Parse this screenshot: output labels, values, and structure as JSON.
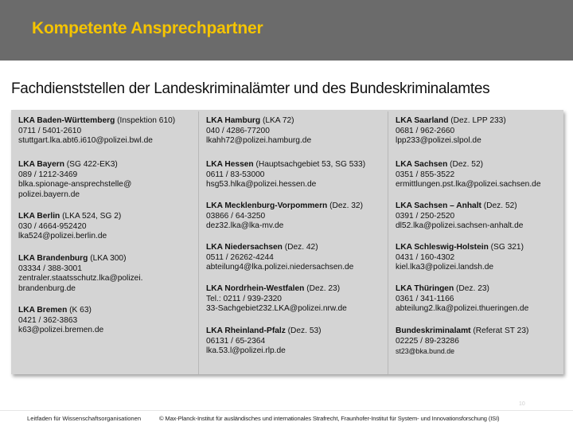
{
  "header": {
    "title": "Kompetente Ansprechpartner"
  },
  "subtitle": "Fachdienststellen der Landeskriminalämter und des Bundeskriminalamtes",
  "columns": [
    {
      "entries": [
        {
          "name": "LKA Baden-Württemberg",
          "extra": " (Inspektion 610)",
          "lines": [
            "0711 / 5401-2610",
            "stuttgart.lka.abt6.i610@polizei.bwl.de"
          ]
        },
        {
          "name": "LKA Bayern",
          "extra": " (SG 422-EK3)",
          "lines": [
            "089 / 1212-3469",
            "blka.spionage-ansprechstelle@",
            "polizei.bayern.de"
          ]
        },
        {
          "name": "LKA Berlin",
          "extra": " (LKA 524, SG 2)",
          "lines": [
            "030 / 4664-952420",
            "lka524@polizei.berlin.de"
          ]
        },
        {
          "name": "LKA Brandenburg",
          "extra": " (LKA 300)",
          "lines": [
            "03334 / 388-3001",
            "zentraler.staatsschutz.lka@polizei.",
            "brandenburg.de"
          ]
        },
        {
          "name": "LKA Bremen",
          "extra": " (K 63)",
          "lines": [
            "0421 / 362-3863",
            "k63@polizei.bremen.de"
          ]
        }
      ]
    },
    {
      "entries": [
        {
          "name": "LKA Hamburg",
          "extra": " (LKA 72)",
          "lines": [
            "040 / 4286-77200",
            "lkahh72@polizei.hamburg.de"
          ]
        },
        {
          "name": "LKA Hessen",
          "extra": " (Hauptsachgebiet 53, SG 533)",
          "lines": [
            "0611 / 83-53000",
            "hsg53.hlka@polizei.hessen.de"
          ]
        },
        {
          "name": "LKA Mecklenburg-Vorpommern",
          "extra": " (Dez. 32)",
          "lines": [
            "03866 / 64-3250",
            "dez32.lka@lka-mv.de"
          ]
        },
        {
          "name": "LKA Niedersachsen",
          "extra": " (Dez. 42)",
          "lines": [
            "0511 / 26262-4244",
            "abteilung4@lka.polizei.niedersachsen.de"
          ]
        },
        {
          "name": "LKA Nordrhein-Westfalen",
          "extra": " (Dez. 23)",
          "lines": [
            "Tel.: 0211 / 939-2320",
            "33-Sachgebiet232.LKA@polizei.nrw.de"
          ]
        },
        {
          "name": "LKA Rheinland-Pfalz",
          "extra": " (Dez. 53)",
          "lines": [
            "06131 / 65-2364",
            "lka.53.l@polizei.rlp.de"
          ]
        }
      ]
    },
    {
      "entries": [
        {
          "name": "LKA Saarland",
          "extra": " (Dez. LPP 233)",
          "lines": [
            "0681 / 962-2660",
            "lpp233@polizei.slpol.de"
          ]
        },
        {
          "name": "LKA Sachsen",
          "extra": " (Dez. 52)",
          "lines": [
            "0351 / 855-3522",
            "ermittlungen.pst.lka@polizei.sachsen.de"
          ]
        },
        {
          "name": "LKA Sachsen – Anhalt",
          "extra": " (Dez. 52)",
          "lines": [
            "0391 / 250-2520",
            "dl52.lka@polizei.sachsen-anhalt.de"
          ]
        },
        {
          "name": "LKA Schleswig-Holstein",
          "extra": " (SG 321)",
          "lines": [
            "0431 / 160-4302",
            "kiel.lka3@polizei.landsh.de"
          ]
        },
        {
          "name": "LKA Thüringen",
          "extra": " (Dez. 23)",
          "lines": [
            "0361 / 341-1166",
            "abteilung2.lka@polizei.thueringen.de"
          ]
        },
        {
          "name": "Bundeskriminalamt",
          "extra": " (Referat ST 23)",
          "lines": [
            "02225 / 89-23286",
            "st23@bka.bund.de"
          ]
        }
      ]
    }
  ],
  "footer": {
    "left": "Leitfaden für Wissenschaftsorganisationen",
    "right": "© Max-Planck-Institut für ausländisches und internationales Strafrecht, Fraunhofer-Institut für System- und Innovationsforschung (ISI)",
    "page": "10"
  }
}
